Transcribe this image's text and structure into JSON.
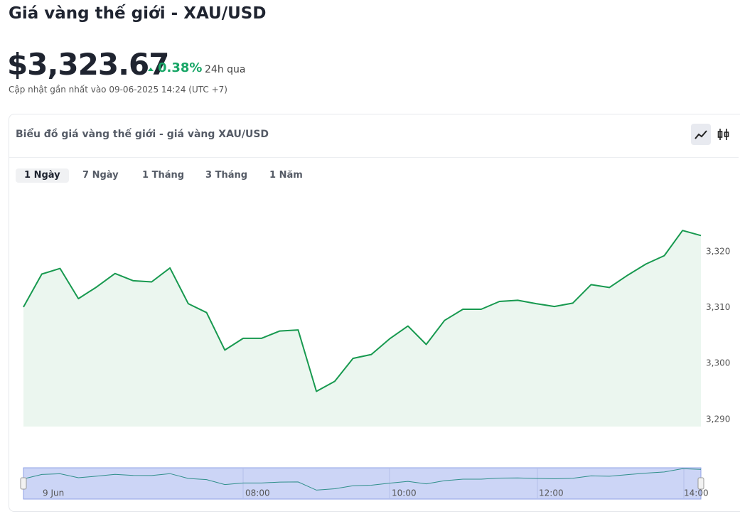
{
  "header": {
    "title": "Giá vàng thế giới - XAU/USD",
    "price": "$3,323.67",
    "change": "0.38%",
    "change_period": "24h qua",
    "updated": "Cập nhật gần nhất vào 09-06-2025 14:24 (UTC +7)"
  },
  "card": {
    "title": "Biểu đồ giá vàng thế giới - giá vàng XAU/USD",
    "tabs": [
      "1 Ngày",
      "7 Ngày",
      "1 Tháng",
      "3 Tháng",
      "1 Năm"
    ],
    "active_tab": 0
  },
  "chart_data": {
    "type": "line",
    "color": "#17994f",
    "area_color": "#ebf6ef",
    "values": [
      3310.1,
      3316.0,
      3317.0,
      3311.6,
      3313.7,
      3316.1,
      3314.8,
      3314.6,
      3317.1,
      3310.7,
      3309.1,
      3302.4,
      3304.5,
      3304.5,
      3305.8,
      3306.0,
      3295.0,
      3296.8,
      3300.9,
      3301.6,
      3304.4,
      3306.7,
      3303.4,
      3307.7,
      3309.7,
      3309.7,
      3311.1,
      3311.3,
      3310.7,
      3310.2,
      3310.8,
      3314.1,
      3313.6,
      3315.8,
      3317.8,
      3319.3,
      3323.8,
      3322.9
    ],
    "ylim": [
      3288.7,
      3330.7
    ],
    "yticks": [
      {
        "value": 3290,
        "label": "3,290"
      },
      {
        "value": 3300,
        "label": "3,300"
      },
      {
        "value": 3310,
        "label": "3,310"
      },
      {
        "value": 3320,
        "label": "3,320"
      }
    ],
    "navigator_labels": [
      "9 Jun",
      "08:00",
      "10:00",
      "12:00",
      "14:00"
    ]
  }
}
